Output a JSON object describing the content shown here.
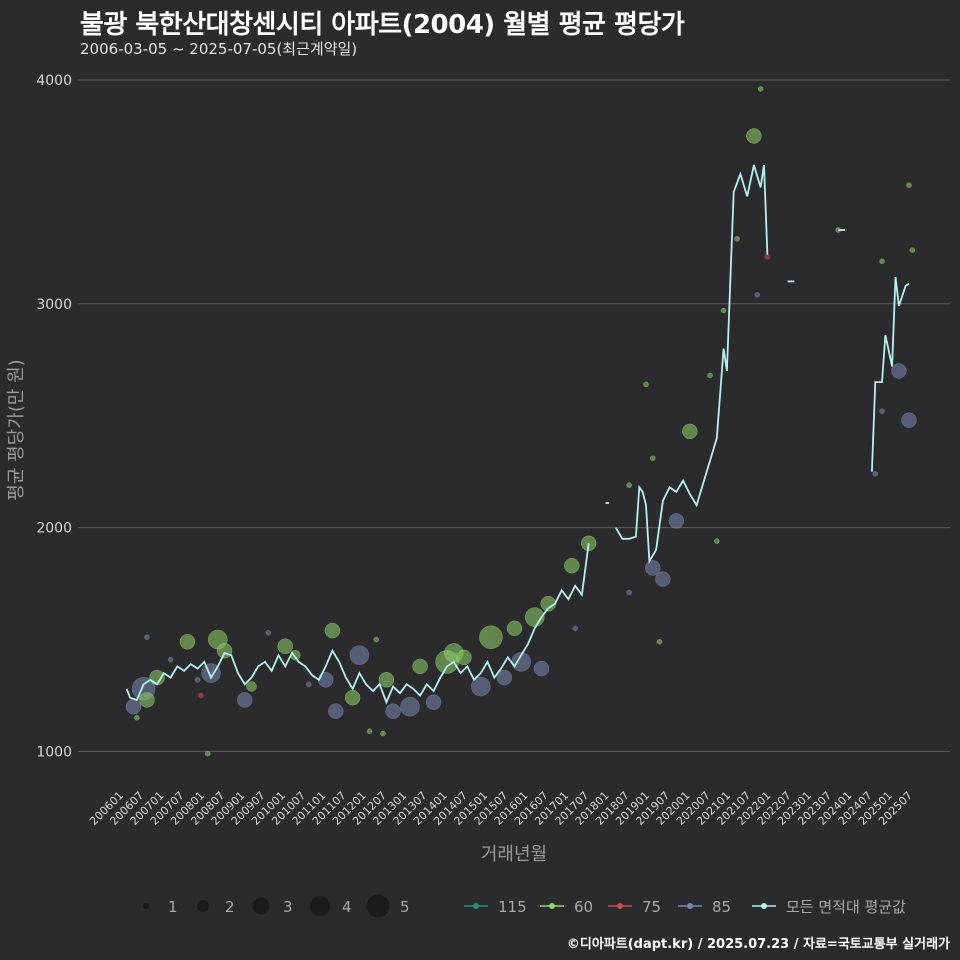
{
  "header": {
    "title": "불광 북한산대창센시티 아파트(2004) 월별 평균 평당가",
    "subtitle": "2006-03-05 ~ 2025-07-05(최근계약일)"
  },
  "caption": "©디아파트(dapt.kr) / 2025.07.23 / 자료=국토교통부 실거래가",
  "colors": {
    "background": "#2b2b2d",
    "grid": "#5c5c5e",
    "avg_line": "#b8f0f0",
    "s115": "#2a8c7a",
    "s60": "#8fd26a",
    "s75": "#c85050",
    "s85": "#7a88b0"
  },
  "chart_data": {
    "type": "scatter",
    "xlabel": "거래년월",
    "ylabel": "평균 평당가(만 원)",
    "ylim": [
      850,
      4000
    ],
    "yticks": [
      1000,
      2000,
      3000,
      4000
    ],
    "x_start": "2006-01",
    "x_end": "2025-07",
    "xticks": [
      "200601",
      "200607",
      "200701",
      "200707",
      "200801",
      "200807",
      "200901",
      "200907",
      "201001",
      "201007",
      "201101",
      "201107",
      "201201",
      "201207",
      "201301",
      "201307",
      "201401",
      "201407",
      "201501",
      "201507",
      "201601",
      "201607",
      "201701",
      "201707",
      "201801",
      "201807",
      "201901",
      "201907",
      "202001",
      "202007",
      "202101",
      "202107",
      "202201",
      "202207",
      "202301",
      "202307",
      "202401",
      "202407",
      "202501",
      "202507"
    ],
    "size_legend": {
      "title": "",
      "values": [
        1,
        2,
        3,
        4,
        5
      ]
    },
    "series_legend": [
      "115",
      "60",
      "75",
      "85",
      "모든 면적대 평균값"
    ],
    "avg_line": [
      [
        "2006-03",
        1280
      ],
      [
        "2006-04",
        1240
      ],
      [
        "2006-06",
        1230
      ],
      [
        "2006-08",
        1300
      ],
      [
        "2006-10",
        1320
      ],
      [
        "2006-12",
        1300
      ],
      [
        "2007-02",
        1350
      ],
      [
        "2007-04",
        1330
      ],
      [
        "2007-06",
        1380
      ],
      [
        "2007-08",
        1360
      ],
      [
        "2007-10",
        1390
      ],
      [
        "2007-12",
        1370
      ],
      [
        "2008-02",
        1400
      ],
      [
        "2008-04",
        1330
      ],
      [
        "2008-06",
        1380
      ],
      [
        "2008-08",
        1440
      ],
      [
        "2008-10",
        1430
      ],
      [
        "2008-12",
        1350
      ],
      [
        "2009-02",
        1300
      ],
      [
        "2009-04",
        1330
      ],
      [
        "2009-06",
        1380
      ],
      [
        "2009-08",
        1400
      ],
      [
        "2009-10",
        1360
      ],
      [
        "2009-12",
        1430
      ],
      [
        "2010-02",
        1380
      ],
      [
        "2010-04",
        1440
      ],
      [
        "2010-06",
        1400
      ],
      [
        "2010-08",
        1380
      ],
      [
        "2010-10",
        1340
      ],
      [
        "2010-12",
        1320
      ],
      [
        "2011-02",
        1380
      ],
      [
        "2011-04",
        1450
      ],
      [
        "2011-06",
        1400
      ],
      [
        "2011-08",
        1330
      ],
      [
        "2011-10",
        1280
      ],
      [
        "2011-12",
        1350
      ],
      [
        "2012-02",
        1300
      ],
      [
        "2012-04",
        1270
      ],
      [
        "2012-06",
        1300
      ],
      [
        "2012-08",
        1220
      ],
      [
        "2012-10",
        1290
      ],
      [
        "2012-12",
        1260
      ],
      [
        "2013-02",
        1300
      ],
      [
        "2013-04",
        1280
      ],
      [
        "2013-06",
        1250
      ],
      [
        "2013-08",
        1300
      ],
      [
        "2013-10",
        1270
      ],
      [
        "2013-12",
        1330
      ],
      [
        "2014-02",
        1380
      ],
      [
        "2014-04",
        1400
      ],
      [
        "2014-06",
        1350
      ],
      [
        "2014-08",
        1380
      ],
      [
        "2014-10",
        1320
      ],
      [
        "2014-12",
        1350
      ],
      [
        "2015-02",
        1400
      ],
      [
        "2015-04",
        1330
      ],
      [
        "2015-06",
        1370
      ],
      [
        "2015-08",
        1420
      ],
      [
        "2015-10",
        1380
      ],
      [
        "2015-12",
        1430
      ],
      [
        "2016-02",
        1480
      ],
      [
        "2016-04",
        1550
      ],
      [
        "2016-06",
        1600
      ],
      [
        "2016-08",
        1640
      ],
      [
        "2016-10",
        1660
      ],
      [
        "2016-12",
        1720
      ],
      [
        "2017-02",
        1680
      ],
      [
        "2017-04",
        1740
      ],
      [
        "2017-06",
        1700
      ],
      [
        "2017-08",
        1930
      ],
      [
        "2017-10",
        null
      ],
      [
        "2018-01",
        2110
      ],
      [
        "2018-02",
        2110
      ],
      [
        "2018-03",
        null
      ],
      [
        "2018-04",
        2000
      ],
      [
        "2018-06",
        1950
      ],
      [
        "2018-08",
        1950
      ],
      [
        "2018-10",
        1960
      ],
      [
        "2018-11",
        2180
      ],
      [
        "2018-12",
        2160
      ],
      [
        "2019-01",
        2100
      ],
      [
        "2019-02",
        1850
      ],
      [
        "2019-04",
        1900
      ],
      [
        "2019-06",
        2120
      ],
      [
        "2019-08",
        2180
      ],
      [
        "2019-10",
        2160
      ],
      [
        "2019-12",
        2210
      ],
      [
        "2020-02",
        2150
      ],
      [
        "2020-04",
        2100
      ],
      [
        "2020-06",
        2200
      ],
      [
        "2020-08",
        2300
      ],
      [
        "2020-10",
        2400
      ],
      [
        "2020-12",
        2800
      ],
      [
        "2021-01",
        2700
      ],
      [
        "2021-03",
        3500
      ],
      [
        "2021-05",
        3580
      ],
      [
        "2021-07",
        3480
      ],
      [
        "2021-09",
        3620
      ],
      [
        "2021-11",
        3520
      ],
      [
        "2021-12",
        3620
      ],
      [
        "2022-01",
        3220
      ],
      [
        "2022-02",
        null
      ],
      [
        "2022-07",
        3100
      ],
      [
        "2022-09",
        3100
      ],
      [
        "2022-10",
        null
      ],
      [
        "2023-10",
        3330
      ],
      [
        "2023-12",
        3330
      ],
      [
        "2024-01",
        null
      ],
      [
        "2024-08",
        2250
      ],
      [
        "2024-09",
        2650
      ],
      [
        "2024-11",
        2650
      ],
      [
        "2024-12",
        2860
      ],
      [
        "2025-02",
        2720
      ],
      [
        "2025-03",
        3120
      ],
      [
        "2025-04",
        2990
      ],
      [
        "2025-06",
        3080
      ],
      [
        "2025-07",
        3090
      ]
    ],
    "points": [
      {
        "s": "85",
        "d": "2006-05",
        "v": 1200,
        "n": 3
      },
      {
        "s": "85",
        "d": "2006-08",
        "v": 1280,
        "n": 5
      },
      {
        "s": "60",
        "d": "2006-09",
        "v": 1230,
        "n": 3
      },
      {
        "s": "60",
        "d": "2006-06",
        "v": 1150,
        "n": 1
      },
      {
        "s": "85",
        "d": "2006-09",
        "v": 1510,
        "n": 1
      },
      {
        "s": "60",
        "d": "2006-12",
        "v": 1330,
        "n": 3
      },
      {
        "s": "85",
        "d": "2007-04",
        "v": 1410,
        "n": 1
      },
      {
        "s": "60",
        "d": "2007-09",
        "v": 1490,
        "n": 3
      },
      {
        "s": "85",
        "d": "2007-12",
        "v": 1320,
        "n": 1
      },
      {
        "s": "75",
        "d": "2008-01",
        "v": 1250,
        "n": 1
      },
      {
        "s": "60",
        "d": "2008-03",
        "v": 990,
        "n": 1
      },
      {
        "s": "85",
        "d": "2008-04",
        "v": 1350,
        "n": 4
      },
      {
        "s": "60",
        "d": "2008-06",
        "v": 1500,
        "n": 4
      },
      {
        "s": "60",
        "d": "2008-08",
        "v": 1450,
        "n": 3
      },
      {
        "s": "85",
        "d": "2009-02",
        "v": 1230,
        "n": 3
      },
      {
        "s": "60",
        "d": "2009-04",
        "v": 1290,
        "n": 2
      },
      {
        "s": "85",
        "d": "2009-09",
        "v": 1530,
        "n": 1
      },
      {
        "s": "60",
        "d": "2010-02",
        "v": 1470,
        "n": 3
      },
      {
        "s": "60",
        "d": "2010-05",
        "v": 1430,
        "n": 2
      },
      {
        "s": "85",
        "d": "2010-09",
        "v": 1300,
        "n": 1
      },
      {
        "s": "85",
        "d": "2011-02",
        "v": 1320,
        "n": 3
      },
      {
        "s": "60",
        "d": "2011-04",
        "v": 1540,
        "n": 3
      },
      {
        "s": "85",
        "d": "2011-05",
        "v": 1180,
        "n": 3
      },
      {
        "s": "60",
        "d": "2011-10",
        "v": 1240,
        "n": 3
      },
      {
        "s": "85",
        "d": "2011-12",
        "v": 1430,
        "n": 4
      },
      {
        "s": "60",
        "d": "2012-03",
        "v": 1090,
        "n": 1
      },
      {
        "s": "60",
        "d": "2012-05",
        "v": 1500,
        "n": 1
      },
      {
        "s": "60",
        "d": "2012-08",
        "v": 1320,
        "n": 3
      },
      {
        "s": "85",
        "d": "2012-10",
        "v": 1180,
        "n": 3
      },
      {
        "s": "60",
        "d": "2012-07",
        "v": 1080,
        "n": 1
      },
      {
        "s": "85",
        "d": "2013-03",
        "v": 1200,
        "n": 4
      },
      {
        "s": "60",
        "d": "2013-06",
        "v": 1380,
        "n": 3
      },
      {
        "s": "85",
        "d": "2013-10",
        "v": 1220,
        "n": 3
      },
      {
        "s": "60",
        "d": "2014-02",
        "v": 1400,
        "n": 5
      },
      {
        "s": "60",
        "d": "2014-04",
        "v": 1440,
        "n": 4
      },
      {
        "s": "60",
        "d": "2014-07",
        "v": 1420,
        "n": 3
      },
      {
        "s": "85",
        "d": "2014-12",
        "v": 1290,
        "n": 4
      },
      {
        "s": "60",
        "d": "2015-03",
        "v": 1510,
        "n": 5
      },
      {
        "s": "85",
        "d": "2015-07",
        "v": 1330,
        "n": 3
      },
      {
        "s": "60",
        "d": "2015-10",
        "v": 1550,
        "n": 3
      },
      {
        "s": "85",
        "d": "2015-12",
        "v": 1400,
        "n": 4
      },
      {
        "s": "60",
        "d": "2016-04",
        "v": 1600,
        "n": 4
      },
      {
        "s": "85",
        "d": "2016-06",
        "v": 1370,
        "n": 3
      },
      {
        "s": "60",
        "d": "2016-08",
        "v": 1660,
        "n": 3
      },
      {
        "s": "60",
        "d": "2017-03",
        "v": 1830,
        "n": 3
      },
      {
        "s": "85",
        "d": "2017-04",
        "v": 1550,
        "n": 1
      },
      {
        "s": "60",
        "d": "2017-08",
        "v": 1930,
        "n": 3
      },
      {
        "s": "85",
        "d": "2018-08",
        "v": 1710,
        "n": 1
      },
      {
        "s": "60",
        "d": "2018-08",
        "v": 2190,
        "n": 1
      },
      {
        "s": "60",
        "d": "2019-01",
        "v": 2640,
        "n": 1
      },
      {
        "s": "85",
        "d": "2019-03",
        "v": 1820,
        "n": 3
      },
      {
        "s": "85",
        "d": "2019-06",
        "v": 1770,
        "n": 3
      },
      {
        "s": "60",
        "d": "2019-03",
        "v": 2310,
        "n": 1
      },
      {
        "s": "85",
        "d": "2019-10",
        "v": 2030,
        "n": 3
      },
      {
        "s": "60",
        "d": "2020-02",
        "v": 2430,
        "n": 3
      },
      {
        "s": "60",
        "d": "2020-08",
        "v": 2680,
        "n": 1
      },
      {
        "s": "60",
        "d": "2020-12",
        "v": 2970,
        "n": 1
      },
      {
        "s": "60",
        "d": "2021-04",
        "v": 3290,
        "n": 1
      },
      {
        "s": "60",
        "d": "2021-09",
        "v": 3750,
        "n": 3
      },
      {
        "s": "60",
        "d": "2021-11",
        "v": 3960,
        "n": 1
      },
      {
        "s": "75",
        "d": "2022-01",
        "v": 3210,
        "n": 1
      },
      {
        "s": "85",
        "d": "2021-10",
        "v": 3040,
        "n": 1
      },
      {
        "s": "60",
        "d": "2023-10",
        "v": 3330,
        "n": 1
      },
      {
        "s": "85",
        "d": "2024-09",
        "v": 2240,
        "n": 1
      },
      {
        "s": "60",
        "d": "2024-11",
        "v": 3190,
        "n": 1
      },
      {
        "s": "85",
        "d": "2024-11",
        "v": 2520,
        "n": 1
      },
      {
        "s": "85",
        "d": "2025-04",
        "v": 2700,
        "n": 3
      },
      {
        "s": "85",
        "d": "2025-07",
        "v": 2480,
        "n": 3
      },
      {
        "s": "60",
        "d": "2025-07",
        "v": 3530,
        "n": 1
      },
      {
        "s": "60",
        "d": "2025-08",
        "v": 3240,
        "n": 1
      },
      {
        "s": "60",
        "d": "2020-10",
        "v": 1940,
        "n": 1
      },
      {
        "s": "60",
        "d": "2019-05",
        "v": 1490,
        "n": 1
      }
    ]
  }
}
